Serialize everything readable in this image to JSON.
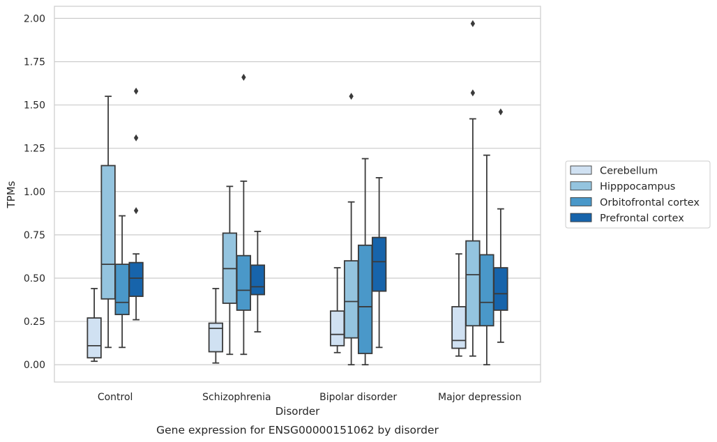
{
  "chart_data": {
    "type": "box",
    "title": "",
    "caption": "Gene expression for ENSG00000151062 by disorder",
    "xlabel": "Disorder",
    "ylabel": "TPMs",
    "ylim": [
      -0.1,
      2.07
    ],
    "yticks": [
      "0.00",
      "0.25",
      "0.50",
      "0.75",
      "1.00",
      "1.25",
      "1.50",
      "1.75",
      "2.00"
    ],
    "grid": "horizontal",
    "legend_position": "right",
    "categories": [
      "Control",
      "Schizophrenia",
      "Bipolar disorder",
      "Major depression"
    ],
    "series": [
      {
        "name": "Cerebellum",
        "color": "#d0e1f2",
        "boxes": [
          {
            "whislo": 0.02,
            "q1": 0.04,
            "med": 0.11,
            "q3": 0.27,
            "whishi": 0.44,
            "fliers": []
          },
          {
            "whislo": 0.01,
            "q1": 0.075,
            "med": 0.21,
            "q3": 0.24,
            "whishi": 0.44,
            "fliers": []
          },
          {
            "whislo": 0.07,
            "q1": 0.11,
            "med": 0.175,
            "q3": 0.31,
            "whishi": 0.56,
            "fliers": []
          },
          {
            "whislo": 0.05,
            "q1": 0.095,
            "med": 0.14,
            "q3": 0.335,
            "whishi": 0.64,
            "fliers": []
          }
        ]
      },
      {
        "name": "Hipppocampus",
        "color": "#94c4df",
        "boxes": [
          {
            "whislo": 0.1,
            "q1": 0.38,
            "med": 0.58,
            "q3": 1.15,
            "whishi": 1.55,
            "fliers": []
          },
          {
            "whislo": 0.06,
            "q1": 0.355,
            "med": 0.555,
            "q3": 0.76,
            "whishi": 1.03,
            "fliers": []
          },
          {
            "whislo": 0.0,
            "q1": 0.155,
            "med": 0.365,
            "q3": 0.6,
            "whishi": 0.94,
            "fliers": [
              1.55
            ]
          },
          {
            "whislo": 0.05,
            "q1": 0.225,
            "med": 0.52,
            "q3": 0.715,
            "whishi": 1.42,
            "fliers": [
              1.57,
              1.97
            ]
          }
        ]
      },
      {
        "name": "Orbitofrontal cortex",
        "color": "#4a98c9",
        "boxes": [
          {
            "whislo": 0.1,
            "q1": 0.29,
            "med": 0.36,
            "q3": 0.58,
            "whishi": 0.86,
            "fliers": []
          },
          {
            "whislo": 0.06,
            "q1": 0.315,
            "med": 0.43,
            "q3": 0.63,
            "whishi": 1.06,
            "fliers": [
              1.66
            ]
          },
          {
            "whislo": 0.0,
            "q1": 0.065,
            "med": 0.335,
            "q3": 0.69,
            "whishi": 1.19,
            "fliers": []
          },
          {
            "whislo": 0.0,
            "q1": 0.225,
            "med": 0.36,
            "q3": 0.635,
            "whishi": 1.21,
            "fliers": []
          }
        ]
      },
      {
        "name": "Prefrontal cortex",
        "color": "#1764ab",
        "boxes": [
          {
            "whislo": 0.26,
            "q1": 0.395,
            "med": 0.5,
            "q3": 0.59,
            "whishi": 0.64,
            "fliers": [
              0.89,
              1.31,
              1.58
            ]
          },
          {
            "whislo": 0.19,
            "q1": 0.405,
            "med": 0.45,
            "q3": 0.575,
            "whishi": 0.77,
            "fliers": []
          },
          {
            "whislo": 0.1,
            "q1": 0.425,
            "med": 0.595,
            "q3": 0.735,
            "whishi": 1.08,
            "fliers": []
          },
          {
            "whislo": 0.13,
            "q1": 0.315,
            "med": 0.41,
            "q3": 0.56,
            "whishi": 0.9,
            "fliers": [
              1.46
            ]
          }
        ]
      }
    ]
  }
}
